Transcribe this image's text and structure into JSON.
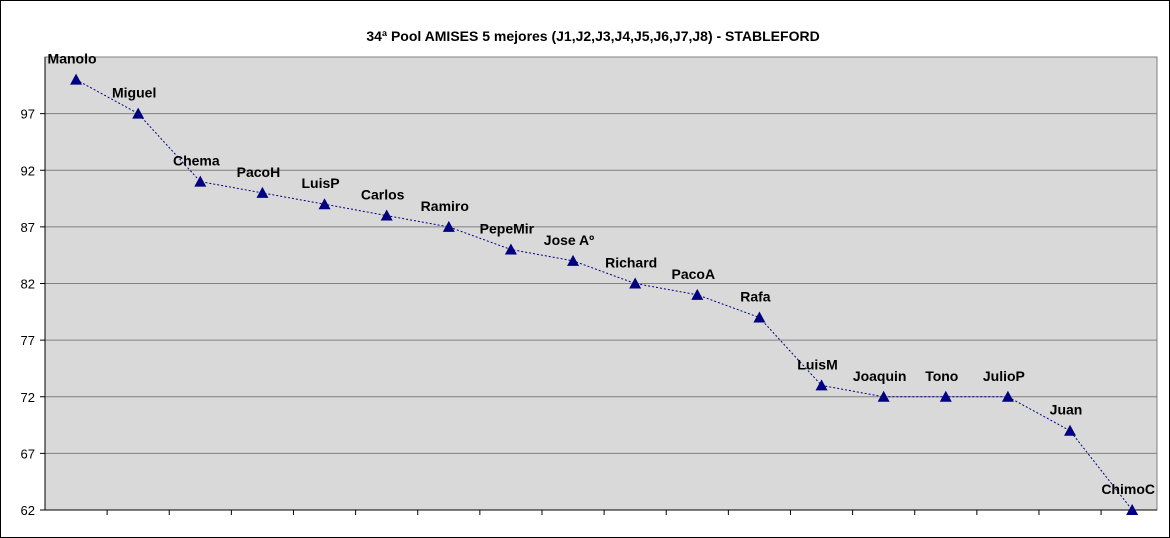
{
  "chart_data": {
    "type": "line",
    "title": "34ª Pool AMISES  5 mejores (J1,J2,J3,J4,J5,J6,J7,J8)  - STABLEFORD",
    "xlabel": "",
    "ylabel": "",
    "ylim": [
      62,
      102
    ],
    "yticks": [
      62,
      67,
      72,
      77,
      82,
      87,
      92,
      97
    ],
    "grid": true,
    "legend": "none",
    "colors": {
      "plot_bg": "#d9d9d9",
      "line": "#000080",
      "marker": "#000080",
      "grid": "#808080"
    },
    "points": [
      {
        "label": "Manolo",
        "value": 100
      },
      {
        "label": "Miguel",
        "value": 97
      },
      {
        "label": "Chema",
        "value": 91
      },
      {
        "label": "PacoH",
        "value": 90
      },
      {
        "label": "LuisP",
        "value": 89
      },
      {
        "label": "Carlos",
        "value": 88
      },
      {
        "label": "Ramiro",
        "value": 87
      },
      {
        "label": "PepeMir",
        "value": 85
      },
      {
        "label": "Jose Aº",
        "value": 84
      },
      {
        "label": "Richard",
        "value": 82
      },
      {
        "label": "PacoA",
        "value": 81
      },
      {
        "label": "Rafa",
        "value": 79
      },
      {
        "label": "LuisM",
        "value": 73
      },
      {
        "label": "Joaquin",
        "value": 72
      },
      {
        "label": "Tono",
        "value": 72
      },
      {
        "label": "JulioP",
        "value": 72
      },
      {
        "label": "Juan",
        "value": 69
      },
      {
        "label": "ChimoC",
        "value": 62
      }
    ]
  }
}
